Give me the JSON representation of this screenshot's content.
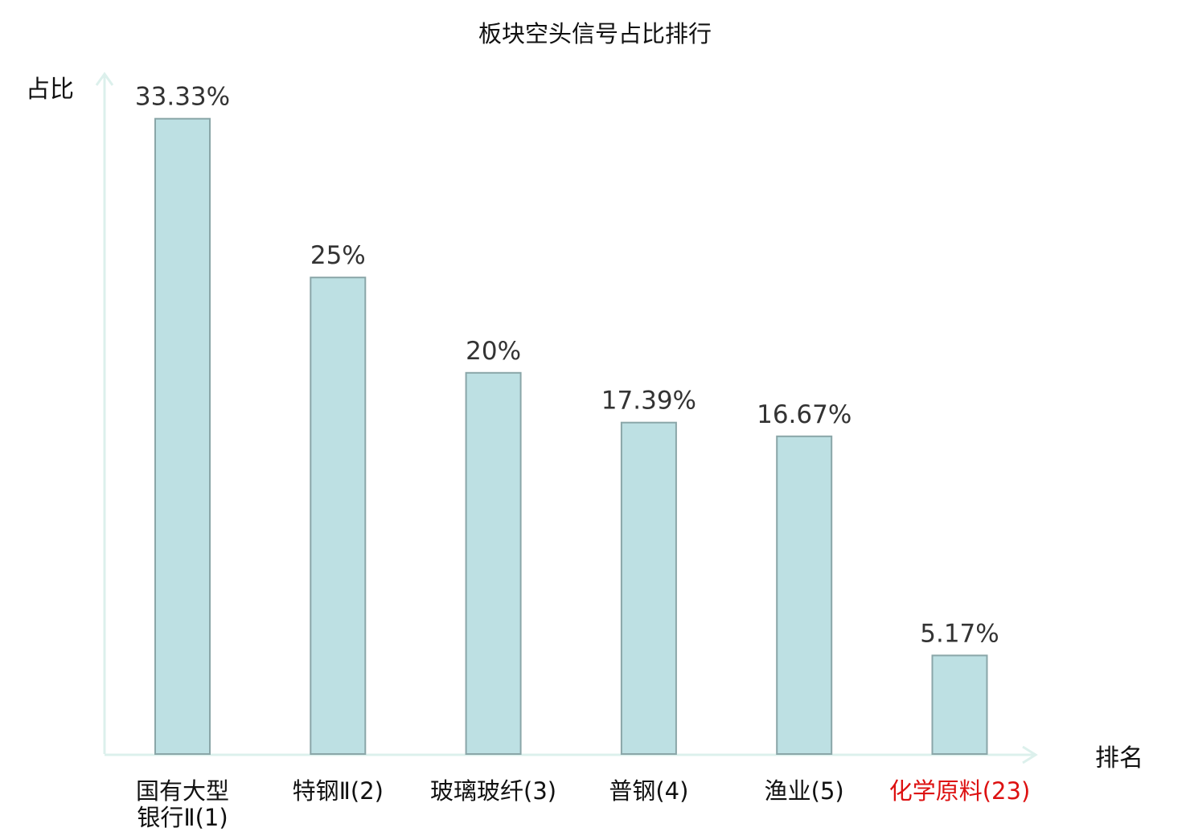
{
  "chart_data": {
    "type": "bar",
    "title": "板块空头信号占比排行",
    "xlabel": "排名",
    "ylabel": "占比",
    "ylim": [
      0,
      34.5
    ],
    "categories": [
      "国有大型银行Ⅱ(1)",
      "特钢Ⅱ(2)",
      "玻璃玻纤(3)",
      "普钢(4)",
      "渔业(5)",
      "化学原料(23)"
    ],
    "category_lines": [
      [
        "国有大型",
        "银行Ⅱ(1)"
      ],
      [
        "特钢Ⅱ(2)"
      ],
      [
        "玻璃玻纤(3)"
      ],
      [
        "普钢(4)"
      ],
      [
        "渔业(5)"
      ],
      [
        "化学原料(23)"
      ]
    ],
    "values": [
      33.33,
      25,
      20,
      17.39,
      16.67,
      5.17
    ],
    "value_labels": [
      "33.33%",
      "25%",
      "20%",
      "17.39%",
      "16.67%",
      "5.17%"
    ],
    "highlight_index": 5,
    "grid": false,
    "colors": {
      "bar_fill": "#bde0e3",
      "bar_stroke": "#8aa6a8",
      "axis": "#dcf0ec",
      "highlight_label": "#dd1111"
    }
  }
}
